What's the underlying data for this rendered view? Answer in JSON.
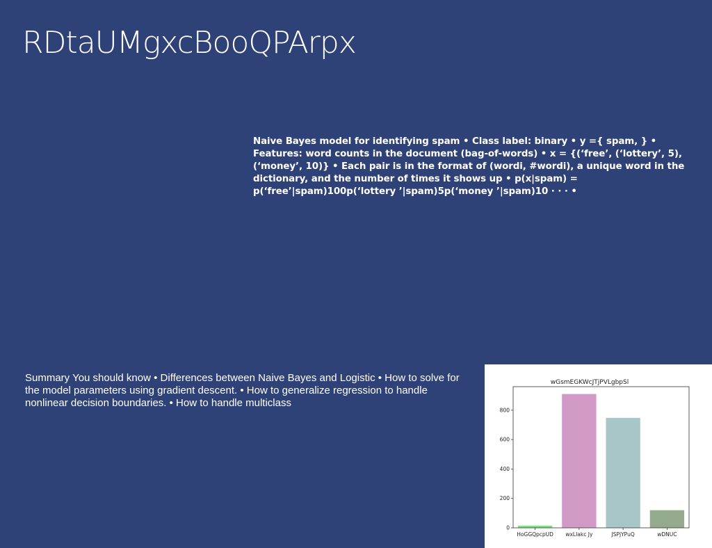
{
  "slide": {
    "title": "RDtaUMgxcBooQPArpx",
    "bold_text": "Naive Bayes model for identifying spam • Class label: binary • y ={ spam, } • Features: word counts in the document (bag-of-words) • x = {(‘free’, (‘lottery’, 5), (‘money’, 10)} • Each pair is in the format of (wordi, #wordi), a unique word in the dictionary, and the number of times it shows up • p(x|spam) = p(‘free’|spam)100p(‘lottery ’|spam)5p(‘money ’|spam)10 · · · •",
    "summary_text": "Summary You should know • Differences between Naive Bayes and Logistic • How to solve for the model parameters using gradient descent. • How to generalize regression to handle nonlinear decision boundaries. • How to handle multiclass"
  },
  "chart_data": {
    "type": "bar",
    "title": "wGsmEGKWcJTjPVLgbpSl",
    "xlabel": "",
    "ylabel": "",
    "categories": [
      "HoGGQpcpUD",
      "wxLIakc Jy",
      "JSPjYPuQ",
      "wDNUC"
    ],
    "values": [
      15,
      910,
      748,
      120
    ],
    "colors": [
      "#7fe08a",
      "#d199c5",
      "#a8c6c6",
      "#93aa8c"
    ],
    "ylim": [
      0,
      960
    ],
    "yticks": [
      0,
      200,
      400,
      600,
      800
    ],
    "grid": false
  }
}
